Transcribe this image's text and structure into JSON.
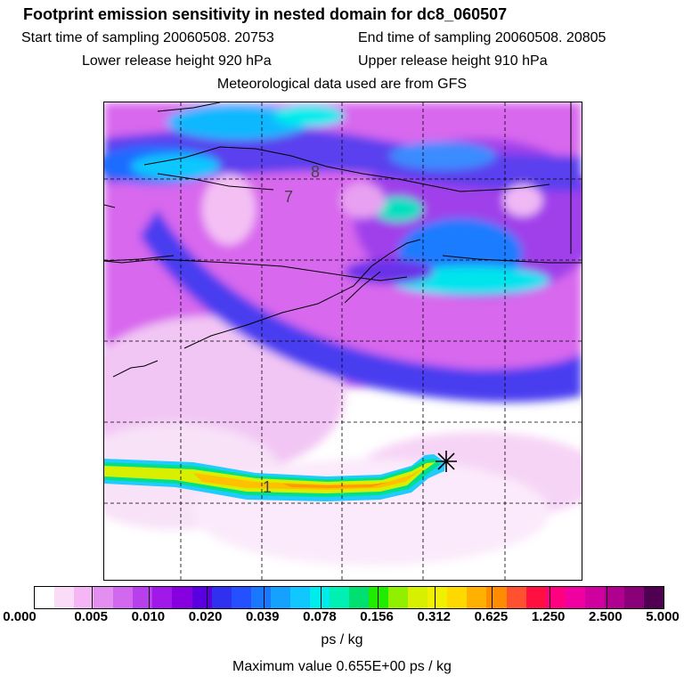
{
  "header": {
    "title": "Footprint emission sensitivity in nested domain for dc8_060507",
    "start_time": "Start time of sampling 20060508. 20753",
    "end_time": "End time of sampling 20060508. 20805",
    "lower_height": "Lower release height  920 hPa",
    "upper_height": "Upper release height  910 hPa",
    "met_data": "Meteorological data used are from GFS"
  },
  "map": {
    "contour_labels": [
      "8",
      "7",
      "1"
    ],
    "marker_icon": "asterisk-marker-icon"
  },
  "colorbar": {
    "tick_labels": [
      "0.000",
      "0.005",
      "0.010",
      "0.020",
      "0.039",
      "0.078",
      "0.156",
      "0.312",
      "0.625",
      "1.250",
      "2.500",
      "5.000"
    ],
    "colors": [
      "#ffffff",
      "#fadcf8",
      "#f4b6f4",
      "#e38ff0",
      "#d268ee",
      "#b840ec",
      "#a019e8",
      "#8600e0",
      "#5a00e0",
      "#3030f0",
      "#2450ff",
      "#1a78ff",
      "#15a2ff",
      "#10c8ff",
      "#00ecec",
      "#00f0b4",
      "#00e070",
      "#20ec00",
      "#90f000",
      "#d8f000",
      "#f0f000",
      "#ffd800",
      "#ffb000",
      "#ff8c00",
      "#ff5030",
      "#ff1040",
      "#ff0080",
      "#f000a0",
      "#d000a0",
      "#b00090",
      "#8a0078",
      "#500050"
    ],
    "unit": "ps / kg",
    "max_value": "Maximum value  0.655E+00 ps / kg"
  }
}
